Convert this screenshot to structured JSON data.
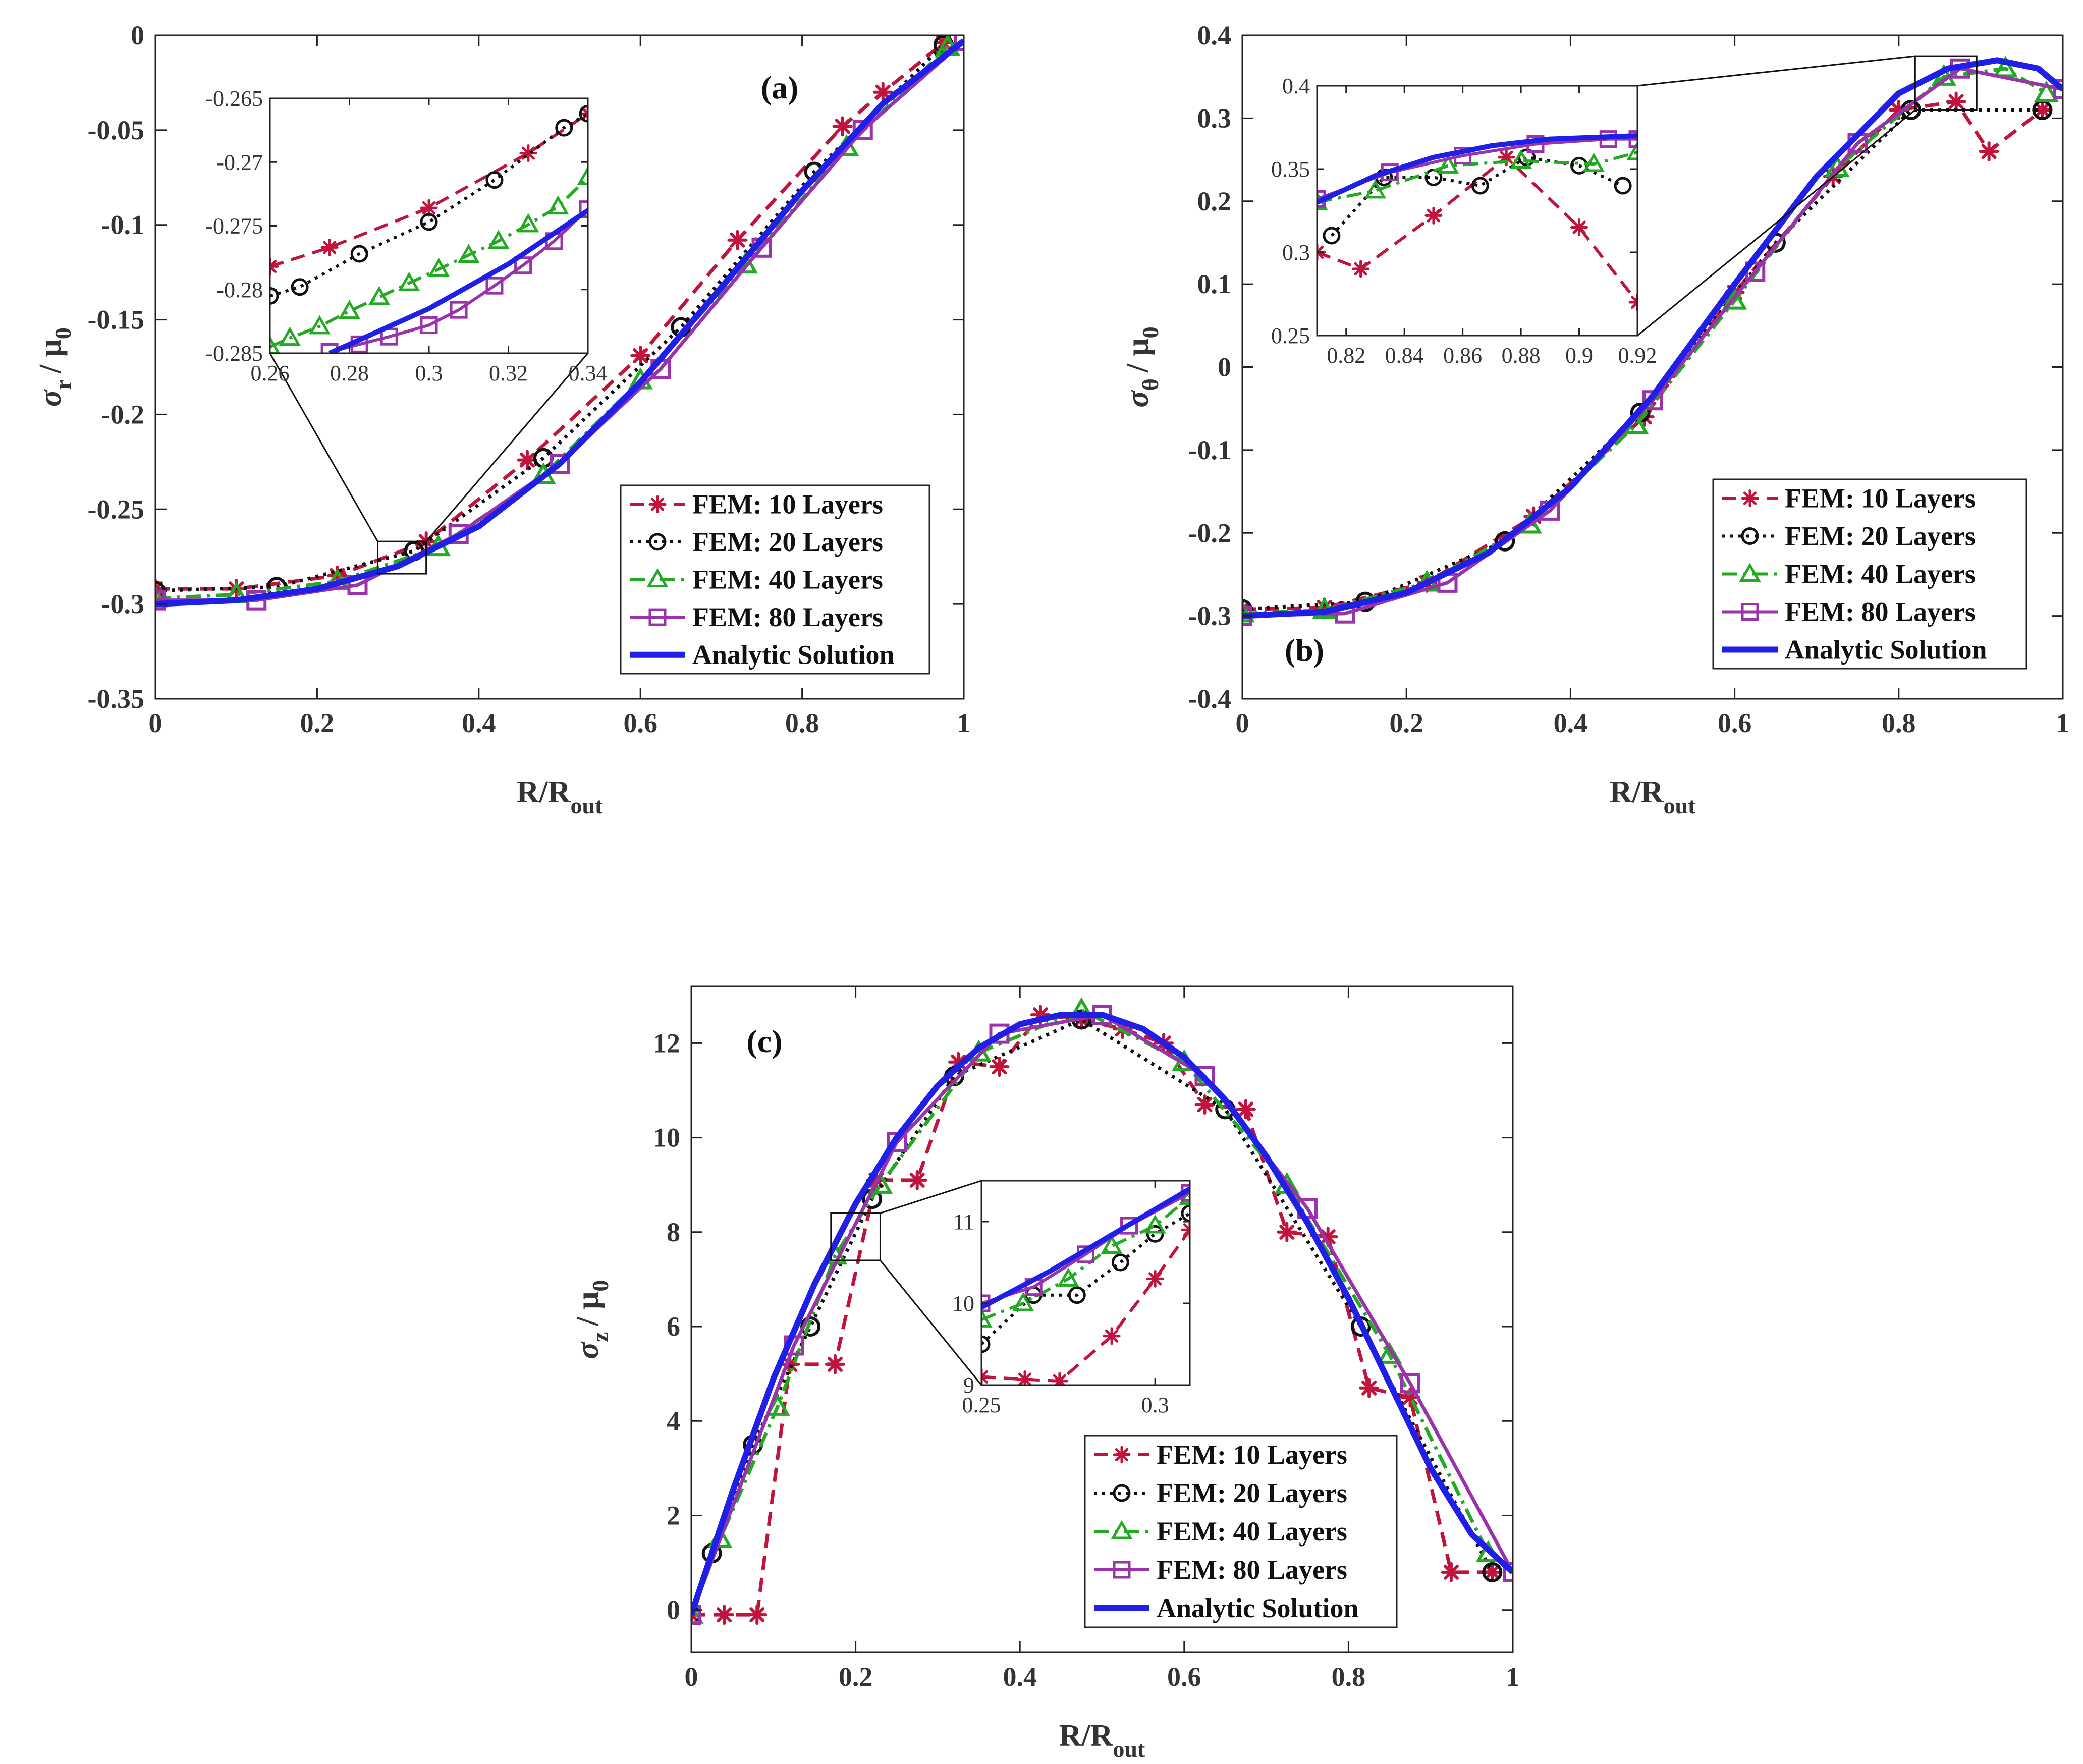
{
  "figure": {
    "series_styles": [
      {
        "name": "FEM: 10 Layers",
        "color": "#c0143c",
        "dash": "28 16",
        "marker": "asterisk"
      },
      {
        "name": "FEM: 20 Layers",
        "color": "#111111",
        "dash": "6 10",
        "marker": "circle"
      },
      {
        "name": "FEM: 40 Layers",
        "color": "#22aa22",
        "dash": "30 12 6 12",
        "marker": "triangle"
      },
      {
        "name": "FEM: 80 Layers",
        "color": "#9933aa",
        "dash": "",
        "marker": "square"
      },
      {
        "name": "Analytic Solution",
        "color": "#1f1fe8",
        "dash": "",
        "marker": "none"
      }
    ]
  },
  "chart_data": [
    {
      "id": "a",
      "type": "line",
      "panel_label": "(a)",
      "xlabel": "R/R",
      "xlabel_sub": "out",
      "ylabel": "σ",
      "ylabel_sub": "r",
      "ylabel_den": "/ μ",
      "ylabel_den_sub": "0",
      "xlim": [
        0,
        1
      ],
      "ylim": [
        -0.35,
        0
      ],
      "xticks": [
        0,
        0.2,
        0.4,
        0.6,
        0.8,
        1
      ],
      "xtick_labels": [
        "0",
        "0.2",
        "0.4",
        "0.6",
        "0.8",
        "1"
      ],
      "yticks": [
        -0.35,
        -0.3,
        -0.25,
        -0.2,
        -0.15,
        -0.1,
        -0.05,
        0
      ],
      "ytick_labels": [
        "-0.35",
        "-0.3",
        "-0.25",
        "-0.2",
        "-0.15",
        "-0.1",
        "-0.05",
        "0"
      ],
      "legend_position": "bottom-right",
      "series": [
        {
          "name": "FEM: 10 Layers",
          "x": [
            0,
            0.1,
            0.225,
            0.335,
            0.46,
            0.6,
            0.72,
            0.85,
            0.9,
            0.975
          ],
          "y": [
            -0.292,
            -0.292,
            -0.285,
            -0.267,
            -0.224,
            -0.169,
            -0.108,
            -0.048,
            -0.03,
            -0.004
          ]
        },
        {
          "name": "FEM: 20 Layers",
          "x": [
            0,
            0.15,
            0.32,
            0.48,
            0.65,
            0.815,
            0.975
          ],
          "y": [
            -0.293,
            -0.291,
            -0.272,
            -0.223,
            -0.154,
            -0.072,
            -0.005
          ]
        },
        {
          "name": "FEM: 40 Layers",
          "x": [
            0,
            0.1,
            0.225,
            0.35,
            0.48,
            0.6,
            0.73,
            0.855,
            0.98
          ],
          "y": [
            -0.297,
            -0.295,
            -0.288,
            -0.27,
            -0.232,
            -0.182,
            -0.121,
            -0.059,
            -0.006
          ]
        },
        {
          "name": "FEM: 80 Layers",
          "x": [
            0,
            0.125,
            0.25,
            0.375,
            0.5,
            0.625,
            0.75,
            0.875,
            1
          ],
          "y": [
            -0.298,
            -0.298,
            -0.29,
            -0.263,
            -0.226,
            -0.176,
            -0.112,
            -0.05,
            -0.003
          ]
        },
        {
          "name": "Analytic Solution",
          "x": [
            0,
            0.1,
            0.2,
            0.3,
            0.4,
            0.5,
            0.6,
            0.7,
            0.8,
            0.9,
            1.0
          ],
          "y": [
            -0.3,
            -0.298,
            -0.292,
            -0.28,
            -0.259,
            -0.226,
            -0.183,
            -0.133,
            -0.082,
            -0.036,
            -0.003
          ]
        }
      ],
      "inset": {
        "source_xlim": [
          0.275,
          0.335
        ],
        "source_ylim": [
          -0.284,
          -0.267
        ],
        "xlim": [
          0.26,
          0.34
        ],
        "ylim": [
          -0.285,
          -0.265
        ],
        "xticks": [
          0.26,
          0.28,
          0.3,
          0.32,
          0.34
        ],
        "xtick_labels": [
          "0.26",
          "0.28",
          "0.3",
          "0.32",
          "0.34"
        ],
        "yticks": [
          -0.285,
          -0.28,
          -0.275,
          -0.27,
          -0.265
        ],
        "ytick_labels": [
          "-0.285",
          "-0.28",
          "-0.275",
          "-0.27",
          "-0.265"
        ],
        "series": [
          {
            "name": "FEM: 10 Layers",
            "x": [
              0.26,
              0.275,
              0.3,
              0.325,
              0.34
            ],
            "y": [
              -0.2782,
              -0.2767,
              -0.2736,
              -0.2693,
              -0.2662
            ]
          },
          {
            "name": "FEM: 20 Layers",
            "x": [
              0.26,
              0.2675,
              0.2825,
              0.3,
              0.3165,
              0.334,
              0.34
            ],
            "y": [
              -0.2805,
              -0.2798,
              -0.2772,
              -0.2747,
              -0.2714,
              -0.2673,
              -0.2662
            ]
          },
          {
            "name": "FEM: 40 Layers",
            "x": [
              0.26,
              0.265,
              0.2725,
              0.28,
              0.2875,
              0.295,
              0.3025,
              0.31,
              0.3175,
              0.325,
              0.3325,
              0.34
            ],
            "y": [
              -0.2845,
              -0.2838,
              -0.2829,
              -0.2817,
              -0.2806,
              -0.2795,
              -0.2784,
              -0.2773,
              -0.2762,
              -0.2749,
              -0.2735,
              -0.2712
            ]
          },
          {
            "name": "FEM: 80 Layers",
            "x": [
              0.275,
              0.2825,
              0.29,
              0.3,
              0.3075,
              0.3165,
              0.3237,
              0.3315,
              0.34
            ],
            "y": [
              -0.2849,
              -0.2843,
              -0.2837,
              -0.2828,
              -0.2816,
              -0.2797,
              -0.2781,
              -0.2762,
              -0.2737
            ]
          },
          {
            "name": "Analytic Solution",
            "x": [
              0.275,
              0.3,
              0.32,
              0.34
            ],
            "y": [
              -0.285,
              -0.2815,
              -0.278,
              -0.2738
            ]
          }
        ]
      }
    },
    {
      "id": "b",
      "type": "line",
      "panel_label": "(b)",
      "xlabel": "R/R",
      "xlabel_sub": "out",
      "ylabel": "σ",
      "ylabel_sub": "θ",
      "ylabel_den": "/ μ",
      "ylabel_den_sub": "0",
      "xlim": [
        0,
        1
      ],
      "ylim": [
        -0.4,
        0.4
      ],
      "xticks": [
        0,
        0.2,
        0.4,
        0.6,
        0.8,
        1
      ],
      "xtick_labels": [
        "0",
        "0.2",
        "0.4",
        "0.6",
        "0.8",
        "1"
      ],
      "yticks": [
        -0.4,
        -0.3,
        -0.2,
        -0.1,
        0,
        0.1,
        0.2,
        0.3,
        0.4
      ],
      "ytick_labels": [
        "-0.4",
        "-0.3",
        "-0.2",
        "-0.1",
        "0",
        "0.1",
        "0.2",
        "0.3",
        "0.4"
      ],
      "legend_position": "bottom-right",
      "series": [
        {
          "name": "FEM: 10 Layers",
          "x": [
            0,
            0.1,
            0.225,
            0.355,
            0.49,
            0.6,
            0.72,
            0.8,
            0.87,
            0.91,
            0.975
          ],
          "y": [
            -0.292,
            -0.29,
            -0.26,
            -0.18,
            -0.06,
            0.09,
            0.23,
            0.31,
            0.32,
            0.26,
            0.31
          ]
        },
        {
          "name": "FEM: 20 Layers",
          "x": [
            0,
            0.15,
            0.32,
            0.485,
            0.65,
            0.815,
            0.975
          ],
          "y": [
            -0.292,
            -0.283,
            -0.21,
            -0.055,
            0.15,
            0.31,
            0.31
          ]
        },
        {
          "name": "FEM: 40 Layers",
          "x": [
            0,
            0.1,
            0.225,
            0.35,
            0.48,
            0.6,
            0.725,
            0.855,
            0.93,
            0.98
          ],
          "y": [
            -0.297,
            -0.293,
            -0.26,
            -0.19,
            -0.07,
            0.08,
            0.24,
            0.35,
            0.36,
            0.33
          ]
        },
        {
          "name": "FEM: 80 Layers",
          "x": [
            0,
            0.125,
            0.25,
            0.375,
            0.5,
            0.625,
            0.75,
            0.875,
            1
          ],
          "y": [
            -0.3,
            -0.297,
            -0.26,
            -0.173,
            -0.04,
            0.115,
            0.27,
            0.36,
            0.335
          ]
        },
        {
          "name": "Analytic Solution",
          "x": [
            0,
            0.1,
            0.2,
            0.3,
            0.4,
            0.5,
            0.6,
            0.7,
            0.8,
            0.86,
            0.92,
            0.97,
            1.0
          ],
          "y": [
            -0.3,
            -0.295,
            -0.272,
            -0.224,
            -0.145,
            -0.035,
            0.1,
            0.23,
            0.33,
            0.36,
            0.37,
            0.36,
            0.335
          ]
        }
      ],
      "inset": {
        "source_xlim": [
          0.82,
          0.895
        ],
        "source_ylim": [
          0.31,
          0.375
        ],
        "xlim": [
          0.81,
          0.92
        ],
        "ylim": [
          0.25,
          0.4
        ],
        "xticks": [
          0.82,
          0.84,
          0.86,
          0.88,
          0.9,
          0.92
        ],
        "xtick_labels": [
          "0.82",
          "0.84",
          "0.86",
          "0.88",
          "0.9",
          "0.92"
        ],
        "yticks": [
          0.25,
          0.3,
          0.35,
          0.4
        ],
        "ytick_labels": [
          "0.25",
          "0.3",
          "0.35",
          "0.4"
        ],
        "series": [
          {
            "name": "FEM: 10 Layers",
            "x": [
              0.81,
              0.825,
              0.85,
              0.875,
              0.9,
              0.92
            ],
            "y": [
              0.3,
              0.29,
              0.322,
              0.357,
              0.315,
              0.27
            ]
          },
          {
            "name": "FEM: 20 Layers",
            "x": [
              0.815,
              0.833,
              0.85,
              0.866,
              0.882,
              0.9,
              0.915
            ],
            "y": [
              0.31,
              0.345,
              0.345,
              0.34,
              0.357,
              0.352,
              0.34
            ]
          },
          {
            "name": "FEM: 40 Layers",
            "x": [
              0.81,
              0.83,
              0.855,
              0.88,
              0.905,
              0.92
            ],
            "y": [
              0.33,
              0.337,
              0.352,
              0.355,
              0.353,
              0.36
            ]
          },
          {
            "name": "FEM: 80 Layers",
            "x": [
              0.81,
              0.835,
              0.86,
              0.885,
              0.91,
              0.92
            ],
            "y": [
              0.332,
              0.348,
              0.358,
              0.365,
              0.368,
              0.368
            ]
          },
          {
            "name": "Analytic Solution",
            "x": [
              0.81,
              0.83,
              0.85,
              0.87,
              0.89,
              0.92
            ],
            "y": [
              0.33,
              0.346,
              0.357,
              0.364,
              0.368,
              0.37
            ]
          }
        ]
      }
    },
    {
      "id": "c",
      "type": "line",
      "panel_label": "(c)",
      "xlabel": "R/R",
      "xlabel_sub": "out",
      "ylabel": "σ",
      "ylabel_sub": "z",
      "ylabel_den": "/ μ",
      "ylabel_den_sub": "0",
      "xlim": [
        0,
        1
      ],
      "ylim": [
        -0.9,
        13.2
      ],
      "xticks": [
        0,
        0.2,
        0.4,
        0.6,
        0.8,
        1
      ],
      "xtick_labels": [
        "0",
        "0.2",
        "0.4",
        "0.6",
        "0.8",
        "1"
      ],
      "yticks": [
        0,
        2,
        4,
        6,
        8,
        10,
        12
      ],
      "ytick_labels": [
        "0",
        "2",
        "4",
        "6",
        "8",
        "10",
        "12"
      ],
      "legend_position": "bottom-right",
      "series": [
        {
          "name": "FEM: 10 Layers",
          "x": [
            0,
            0.04,
            0.08,
            0.12,
            0.175,
            0.225,
            0.275,
            0.325,
            0.375,
            0.425,
            0.475,
            0.525,
            0.575,
            0.625,
            0.675,
            0.725,
            0.775,
            0.825,
            0.875,
            0.925,
            0.975
          ],
          "y": [
            -0.1,
            -0.1,
            -0.1,
            5.2,
            5.2,
            9.1,
            9.1,
            11.6,
            11.5,
            12.6,
            12.5,
            12.3,
            12.0,
            10.7,
            10.6,
            8.0,
            7.9,
            4.7,
            4.5,
            0.8,
            0.8
          ]
        },
        {
          "name": "FEM: 20 Layers",
          "x": [
            0,
            0.025,
            0.075,
            0.145,
            0.22,
            0.32,
            0.475,
            0.65,
            0.815,
            0.975
          ],
          "y": [
            -0.1,
            1.2,
            3.5,
            6.0,
            8.7,
            11.3,
            12.5,
            10.6,
            6.0,
            0.8
          ]
        },
        {
          "name": "FEM: 40 Layers",
          "x": [
            0,
            0.035,
            0.105,
            0.175,
            0.23,
            0.35,
            0.475,
            0.6,
            0.725,
            0.85,
            0.97
          ],
          "y": [
            -0.1,
            1.5,
            4.3,
            7.5,
            9.0,
            11.8,
            12.7,
            11.6,
            9.0,
            5.4,
            1.2
          ]
        },
        {
          "name": "FEM: 80 Layers",
          "x": [
            0,
            0.125,
            0.25,
            0.375,
            0.5,
            0.625,
            0.75,
            0.875,
            1
          ],
          "y": [
            -0.1,
            5.6,
            9.9,
            12.2,
            12.6,
            11.3,
            8.5,
            4.8,
            0.8
          ]
        },
        {
          "name": "Analytic Solution",
          "x": [
            0,
            0.05,
            0.1,
            0.15,
            0.2,
            0.25,
            0.3,
            0.35,
            0.4,
            0.45,
            0.5,
            0.55,
            0.6,
            0.65,
            0.7,
            0.75,
            0.8,
            0.85,
            0.9,
            0.95,
            1.0
          ],
          "y": [
            -0.1,
            2.5,
            4.9,
            6.9,
            8.6,
            10.0,
            11.1,
            11.9,
            12.4,
            12.6,
            12.6,
            12.3,
            11.7,
            10.8,
            9.6,
            8.2,
            6.6,
            4.8,
            3.0,
            1.6,
            0.8
          ]
        }
      ],
      "inset": {
        "source_xlim": [
          0.17,
          0.23
        ],
        "source_ylim": [
          7.4,
          8.4
        ],
        "xlim": [
          0.25,
          0.31
        ],
        "ylim": [
          9,
          11.5
        ],
        "xticks": [
          0.25,
          0.3
        ],
        "xtick_labels": [
          "0.25",
          "0.3"
        ],
        "yticks": [
          9,
          10,
          11
        ],
        "ytick_labels": [
          "9",
          "10",
          "11"
        ],
        "series": [
          {
            "name": "FEM: 10 Layers",
            "x": [
              0.25,
              0.2625,
              0.2725,
              0.2875,
              0.3,
              0.31
            ],
            "y": [
              9.1,
              9.07,
              9.05,
              9.6,
              10.3,
              10.9
            ]
          },
          {
            "name": "FEM: 20 Layers",
            "x": [
              0.25,
              0.265,
              0.2775,
              0.29,
              0.3,
              0.31
            ],
            "y": [
              9.5,
              10.1,
              10.1,
              10.5,
              10.85,
              11.1
            ]
          },
          {
            "name": "FEM: 40 Layers",
            "x": [
              0.25,
              0.262,
              0.275,
              0.2875,
              0.3,
              0.31
            ],
            "y": [
              9.8,
              10.0,
              10.3,
              10.7,
              10.95,
              11.3
            ]
          },
          {
            "name": "FEM: 80 Layers",
            "x": [
              0.25,
              0.265,
              0.28,
              0.2925,
              0.31
            ],
            "y": [
              10.0,
              10.2,
              10.6,
              10.95,
              11.35
            ]
          },
          {
            "name": "Analytic Solution",
            "x": [
              0.25,
              0.27,
              0.29,
              0.31
            ],
            "y": [
              9.95,
              10.4,
              10.9,
              11.4
            ]
          }
        ]
      }
    }
  ]
}
